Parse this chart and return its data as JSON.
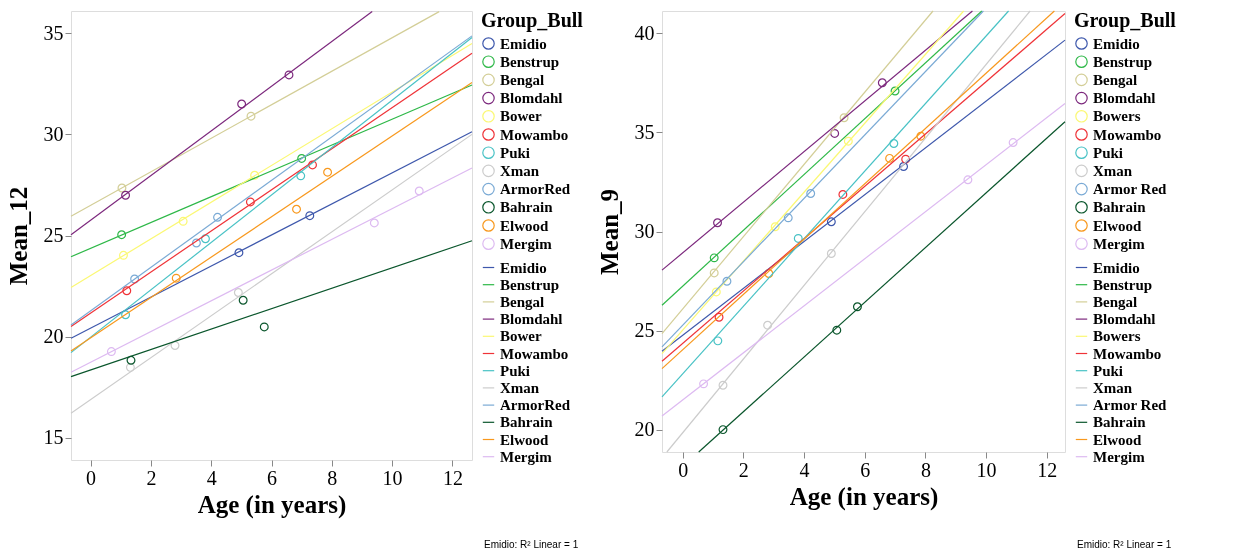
{
  "chart_data": [
    {
      "type": "scatter",
      "xlabel": "Age (in years)",
      "ylabel": "Mean_12",
      "legend_title": "Group_Bull",
      "legend": "right",
      "grid": false,
      "xlim": [
        -0.65,
        12.65
      ],
      "ylim": [
        13.9,
        36.1
      ],
      "xticks": [
        0,
        2,
        4,
        6,
        8,
        10,
        12
      ],
      "yticks": [
        15,
        20,
        25,
        30,
        35
      ],
      "annotations": [
        "Emidio: R² Linear = 1"
      ],
      "series": [
        {
          "name": "Emidio",
          "marker": "circle",
          "color": "#3e58ac",
          "x": [
            4.92,
            7.27
          ],
          "values": [
            24.15,
            25.98
          ]
        },
        {
          "name": "Benstrup",
          "marker": "circle",
          "color": "#2eb848",
          "x": [
            1.03,
            7.0
          ],
          "values": [
            25.04,
            28.81
          ]
        },
        {
          "name": "Bengal",
          "marker": "circle",
          "color": "#d3ce97",
          "x": [
            1.04,
            5.32
          ],
          "values": [
            27.35,
            30.9
          ]
        },
        {
          "name": "Blomdahl",
          "marker": "circle",
          "color": "#7c287d",
          "x": [
            1.16,
            5.01,
            6.58
          ],
          "values": [
            26.99,
            31.5,
            32.94
          ]
        },
        {
          "name": "Bower",
          "marker": "circle",
          "color": "#fbf873",
          "x": [
            1.09,
            3.07,
            5.44
          ],
          "values": [
            24.02,
            25.7,
            27.98
          ]
        },
        {
          "name": "Mowambo",
          "marker": "circle",
          "color": "#ef3338",
          "x": [
            1.2,
            5.3,
            7.36
          ],
          "values": [
            22.27,
            26.66,
            28.49
          ]
        },
        {
          "name": "Puki",
          "marker": "circle",
          "color": "#48c2c5",
          "x": [
            1.16,
            3.81,
            6.97
          ],
          "values": [
            21.08,
            24.84,
            27.95
          ]
        },
        {
          "name": "Xman",
          "marker": "circle",
          "color": "#cccccc",
          "x": [
            1.32,
            2.8,
            4.9
          ],
          "values": [
            18.48,
            19.56,
            22.18
          ]
        },
        {
          "name": "ArmorRed",
          "marker": "circle",
          "color": "#7aaad5",
          "x": [
            1.46,
            3.51,
            4.21
          ],
          "values": [
            22.85,
            24.63,
            25.9
          ]
        },
        {
          "name": "Bahrain",
          "marker": "circle",
          "color": "#0a562c",
          "x": [
            1.34,
            5.06,
            5.76
          ],
          "values": [
            18.83,
            21.8,
            20.48
          ]
        },
        {
          "name": "Elwood",
          "marker": "circle",
          "color": "#f8981d",
          "x": [
            2.84,
            6.83,
            7.86
          ],
          "values": [
            22.89,
            26.3,
            28.13
          ]
        },
        {
          "name": "Mergim",
          "marker": "circle",
          "color": "#ddbaf1",
          "x": [
            0.69,
            9.41,
            10.9
          ],
          "values": [
            19.26,
            25.62,
            27.2
          ]
        },
        {
          "name": "Emidio",
          "type": "line",
          "color": "#3e58ac",
          "x": [
            -0.65,
            12.65
          ],
          "values": [
            19.92,
            30.13
          ]
        },
        {
          "name": "Benstrup",
          "type": "line",
          "color": "#2eb848",
          "x": [
            -0.65,
            12.65
          ],
          "values": [
            23.95,
            32.44
          ]
        },
        {
          "name": "Bengal",
          "type": "line",
          "color": "#d3ce97",
          "x": [
            -0.65,
            11.56
          ],
          "values": [
            25.95,
            36.07
          ]
        },
        {
          "name": "Blomdahl",
          "type": "line",
          "color": "#7c287d",
          "x": [
            -0.65,
            9.34
          ],
          "values": [
            25.04,
            36.07
          ]
        },
        {
          "name": "Bower",
          "type": "line",
          "color": "#fbf873",
          "x": [
            -0.65,
            12.65
          ],
          "values": [
            22.43,
            34.49
          ]
        },
        {
          "name": "Mowambo",
          "type": "line",
          "color": "#ef3338",
          "x": [
            -0.65,
            12.65
          ],
          "values": [
            20.5,
            34.01
          ]
        },
        {
          "name": "Puki",
          "type": "line",
          "color": "#48c2c5",
          "x": [
            -0.65,
            12.65
          ],
          "values": [
            19.21,
            34.79
          ]
        },
        {
          "name": "Xman",
          "type": "line",
          "color": "#cccccc",
          "x": [
            -0.65,
            12.65
          ],
          "values": [
            16.21,
            30.0
          ]
        },
        {
          "name": "ArmorRed",
          "type": "line",
          "color": "#7aaad5",
          "x": [
            -0.65,
            12.65
          ],
          "values": [
            20.58,
            34.87
          ]
        },
        {
          "name": "Bahrain",
          "type": "line",
          "color": "#0a562c",
          "x": [
            -0.65,
            12.65
          ],
          "values": [
            18.02,
            24.74
          ]
        },
        {
          "name": "Elwood",
          "type": "line",
          "color": "#f8981d",
          "x": [
            -0.65,
            12.65
          ],
          "values": [
            19.29,
            32.56
          ]
        },
        {
          "name": "Mergim",
          "type": "line",
          "color": "#ddbaf1",
          "x": [
            -0.65,
            12.65
          ],
          "values": [
            18.24,
            28.34
          ]
        }
      ]
    },
    {
      "type": "scatter",
      "xlabel": "Age (in years)",
      "ylabel": "Mean_9",
      "legend_title": "Group_Bull",
      "legend": "right",
      "grid": false,
      "xlim": [
        -0.68,
        12.6
      ],
      "ylim": [
        18.87,
        41.13
      ],
      "xticks": [
        0,
        2,
        4,
        6,
        8,
        10,
        12
      ],
      "yticks": [
        20,
        25,
        30,
        35,
        40
      ],
      "annotations": [
        "Emidio: R² Linear = 1"
      ],
      "series": [
        {
          "name": "Emidio",
          "marker": "circle",
          "color": "#3e58ac",
          "x": [
            4.9,
            7.28
          ],
          "values": [
            30.49,
            33.28
          ]
        },
        {
          "name": "Benstrup",
          "marker": "circle",
          "color": "#2eb848",
          "x": [
            1.04,
            7.0
          ],
          "values": [
            28.67,
            37.09
          ]
        },
        {
          "name": "Bengal",
          "marker": "circle",
          "color": "#d3ce97",
          "x": [
            1.04,
            5.32
          ],
          "values": [
            27.91,
            35.74
          ]
        },
        {
          "name": "Blomdahl",
          "marker": "circle",
          "color": "#7c287d",
          "x": [
            1.15,
            5.01,
            6.58
          ],
          "values": [
            30.44,
            34.95,
            37.51
          ]
        },
        {
          "name": "Bowers",
          "marker": "circle",
          "color": "#fbf873",
          "x": [
            1.11,
            3.05,
            5.46
          ],
          "values": [
            26.95,
            30.24,
            34.56
          ]
        },
        {
          "name": "Mowambo",
          "marker": "circle",
          "color": "#ef3338",
          "x": [
            1.2,
            5.28,
            7.35
          ],
          "values": [
            25.67,
            31.87,
            33.65
          ]
        },
        {
          "name": "Puki",
          "marker": "circle",
          "color": "#48c2c5",
          "x": [
            1.16,
            3.81,
            6.96
          ],
          "values": [
            24.48,
            29.65,
            34.44
          ]
        },
        {
          "name": "Xman",
          "marker": "circle",
          "color": "#cccccc",
          "x": [
            1.33,
            2.8,
            4.9
          ],
          "values": [
            22.24,
            25.27,
            28.89
          ]
        },
        {
          "name": "Armor Red",
          "marker": "circle",
          "color": "#7aaad5",
          "x": [
            1.46,
            3.48,
            4.22
          ],
          "values": [
            27.49,
            30.69,
            31.92
          ]
        },
        {
          "name": "Bahrain",
          "marker": "circle",
          "color": "#0a562c",
          "x": [
            1.33,
            5.08,
            5.76
          ],
          "values": [
            20.0,
            25.02,
            26.2
          ]
        },
        {
          "name": "Elwood",
          "marker": "circle",
          "color": "#f8981d",
          "x": [
            2.84,
            6.82,
            7.85
          ],
          "values": [
            27.88,
            33.69,
            34.81
          ]
        },
        {
          "name": "Mergim",
          "marker": "circle",
          "color": "#ddbaf1",
          "x": [
            0.69,
            9.4,
            10.89
          ],
          "values": [
            22.31,
            32.61,
            34.49
          ]
        },
        {
          "name": "Emidio",
          "type": "line",
          "color": "#3e58ac",
          "x": [
            -0.68,
            12.6
          ],
          "values": [
            23.96,
            39.66
          ]
        },
        {
          "name": "Benstrup",
          "type": "line",
          "color": "#2eb848",
          "x": [
            -0.68,
            9.86
          ],
          "values": [
            26.28,
            41.13
          ]
        },
        {
          "name": "Bengal",
          "type": "line",
          "color": "#d3ce97",
          "x": [
            -0.68,
            8.25
          ],
          "values": [
            24.85,
            41.13
          ]
        },
        {
          "name": "Blomdahl",
          "type": "line",
          "color": "#7c287d",
          "x": [
            -0.68,
            9.55
          ],
          "values": [
            28.05,
            41.13
          ]
        },
        {
          "name": "Bowers",
          "type": "line",
          "color": "#fbf873",
          "x": [
            -0.68,
            9.26
          ],
          "values": [
            23.84,
            41.13
          ]
        },
        {
          "name": "Mowambo",
          "type": "line",
          "color": "#ef3338",
          "x": [
            -0.68,
            12.6
          ],
          "values": [
            23.45,
            41.0
          ]
        },
        {
          "name": "Puki",
          "type": "line",
          "color": "#48c2c5",
          "x": [
            -0.68,
            10.74
          ],
          "values": [
            21.65,
            41.13
          ]
        },
        {
          "name": "Xman",
          "type": "line",
          "color": "#cccccc",
          "x": [
            -0.52,
            11.45
          ],
          "values": [
            18.87,
            41.13
          ]
        },
        {
          "name": "Armor Red",
          "type": "line",
          "color": "#7aaad5",
          "x": [
            -0.68,
            9.91
          ],
          "values": [
            24.18,
            41.13
          ]
        },
        {
          "name": "Bahrain",
          "type": "line",
          "color": "#0a562c",
          "x": [
            0.53,
            12.6
          ],
          "values": [
            18.87,
            35.54
          ]
        },
        {
          "name": "Elwood",
          "type": "line",
          "color": "#f8981d",
          "x": [
            -0.68,
            12.25
          ],
          "values": [
            23.08,
            41.13
          ]
        },
        {
          "name": "Mergim",
          "type": "line",
          "color": "#ddbaf1",
          "x": [
            -0.68,
            12.6
          ],
          "values": [
            20.69,
            36.46
          ]
        }
      ]
    }
  ]
}
